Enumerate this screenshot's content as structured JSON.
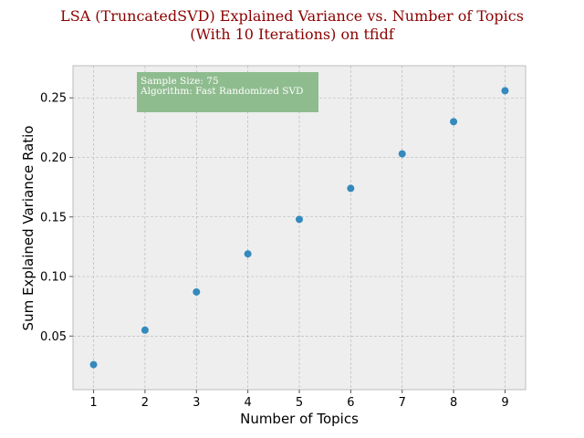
{
  "chart_data": {
    "type": "scatter",
    "title_lines": [
      "LSA (TruncatedSVD) Explained Variance vs. Number of Topics",
      "(With 10 Iterations) on tfidf"
    ],
    "xlabel": "Number of Topics",
    "ylabel": "Sum Explained Variance Ratio",
    "x": [
      1,
      2,
      3,
      4,
      5,
      6,
      7,
      8,
      9
    ],
    "y": [
      0.026,
      0.055,
      0.087,
      0.119,
      0.148,
      0.174,
      0.203,
      0.23,
      0.256
    ],
    "xlim": [
      0.6,
      9.4
    ],
    "ylim": [
      0.005,
      0.277
    ],
    "xticks": [
      1,
      2,
      3,
      4,
      5,
      6,
      7,
      8,
      9
    ],
    "yticks": [
      0.05,
      0.1,
      0.15,
      0.2,
      0.25
    ],
    "ytick_labels": [
      "0.05",
      "0.10",
      "0.15",
      "0.20",
      "0.25"
    ],
    "grid": true,
    "annotation": {
      "lines": [
        "Sample Size: 75",
        "Algorithm: Fast Randomized SVD"
      ]
    },
    "colors": {
      "point": "#348abd",
      "plot_bg": "#eeeeee",
      "grid": "#b2b2b2",
      "annotation_bg": "#8fbc8f",
      "title": "#8b0000"
    }
  }
}
